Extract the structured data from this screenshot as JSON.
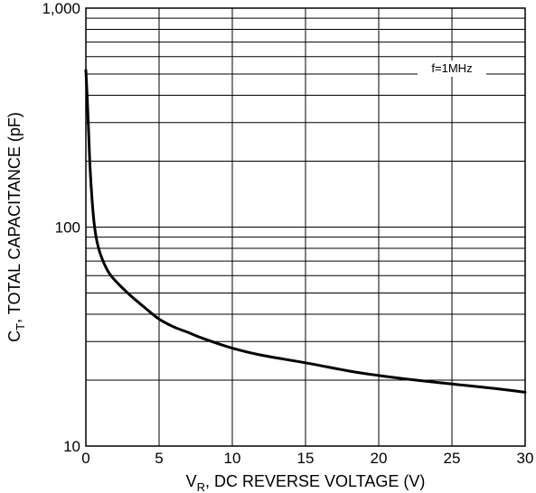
{
  "chart_data": {
    "type": "line",
    "title": "",
    "annotation": "f=1MHz",
    "xlabel": {
      "main": "V",
      "sub": "R",
      "rest": ", DC REVERSE VOLTAGE (V)"
    },
    "ylabel": {
      "main": "C",
      "sub": "T",
      "rest": ", TOTAL CAPACITANCE (pF)"
    },
    "xlim": [
      0,
      30
    ],
    "ylim": [
      10,
      1000
    ],
    "yscale": "log",
    "grid": true,
    "x_ticks": [
      0,
      5,
      10,
      15,
      20,
      25,
      30
    ],
    "x_tick_labels": [
      "0",
      "5",
      "10",
      "15",
      "20",
      "25",
      "30"
    ],
    "y_ticks": [
      10,
      100,
      1000
    ],
    "y_tick_labels": [
      "10",
      "100",
      "1,000"
    ],
    "series": [
      {
        "color": "#000000",
        "x": [
          0,
          0.1,
          0.2,
          0.3,
          0.5,
          0.7,
          1,
          1.5,
          2,
          3,
          4,
          5,
          6,
          7,
          8,
          10,
          12,
          15,
          18,
          20,
          22,
          25,
          28,
          30
        ],
        "y": [
          520,
          380,
          260,
          180,
          115,
          90,
          75,
          63,
          57,
          49,
          43,
          38,
          35,
          33,
          31,
          28,
          26,
          24,
          22,
          21,
          20.2,
          19.2,
          18.3,
          17.6
        ]
      }
    ]
  }
}
